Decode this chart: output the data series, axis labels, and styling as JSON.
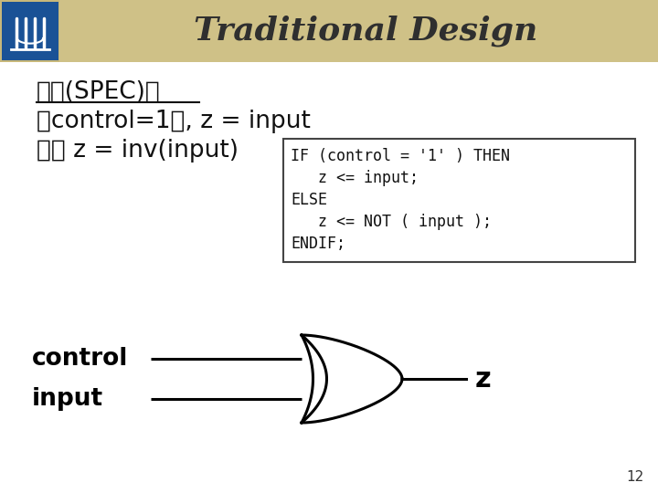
{
  "title": "Traditional Design",
  "title_fontsize": 26,
  "title_color": "#2F2F2F",
  "header_bg_color": "#C8B87A",
  "bg_color": "#FFFFFF",
  "spec_line1": "規格(SPEC)：",
  "spec_line2": "當control=1時, z = input",
  "spec_line3": "否則 z = inv(input)",
  "spec_text_color": "#111111",
  "spec_fontsize": 19,
  "code_lines": [
    "IF (control = '1' ) THEN",
    "   z <= input;",
    "ELSE",
    "   z <= NOT ( input );",
    "ENDIF;"
  ],
  "code_fontsize": 12,
  "code_box_color": "#FFFFFF",
  "code_border_color": "#444444",
  "control_label": "control",
  "input_label": "input",
  "z_label": "z",
  "label_color": "#000000",
  "label_fontsize": 19,
  "page_number": "12",
  "logo_bg_color": "#1a5296",
  "gate_color": "#000000",
  "gate_lw": 2.2
}
